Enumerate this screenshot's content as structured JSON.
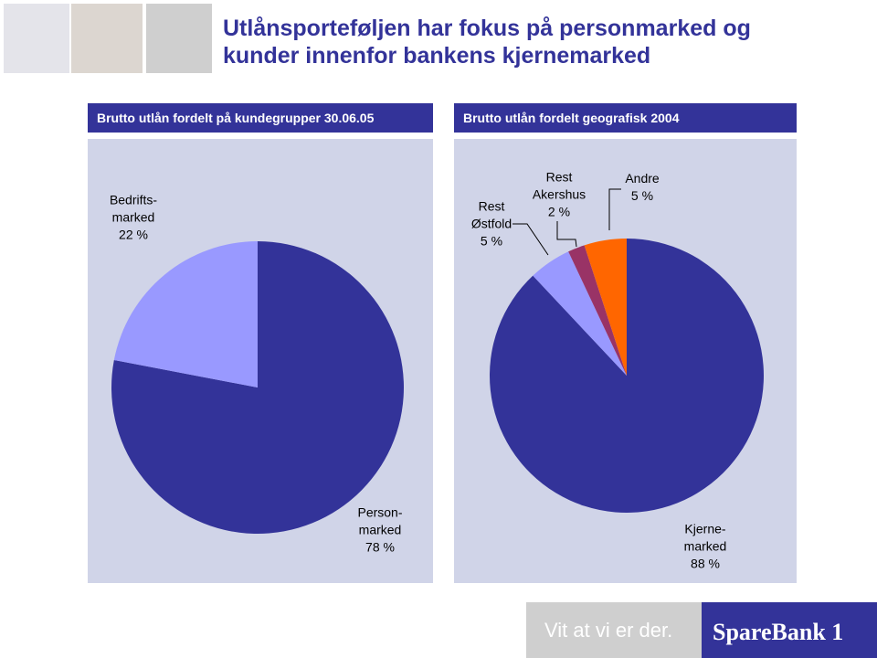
{
  "title": "Utlånsporteføljen har fokus på personmarked og kunder innenfor bankens kjernemarked",
  "chart_data": [
    {
      "type": "pie",
      "title": "Brutto utlån fordelt på kundegrupper 30.06.05",
      "categories": [
        "Person-\nmarked",
        "Bedrifts-\nmarked"
      ],
      "values": [
        78,
        22
      ],
      "value_labels": [
        "78 %",
        "22 %"
      ],
      "colors": [
        "#333399",
        "#9999ff"
      ]
    },
    {
      "type": "pie",
      "title": "Brutto utlån fordelt geografisk 2004",
      "categories": [
        "Kjerne-\nmarked",
        "Rest\nØstfold",
        "Rest\nAkershus",
        "Andre"
      ],
      "values": [
        88,
        5,
        2,
        5
      ],
      "value_labels": [
        "88 %",
        "5 %",
        "2 %",
        "5 %"
      ],
      "colors": [
        "#333399",
        "#9999ff",
        "#993366",
        "#ff6600"
      ]
    }
  ],
  "footer": {
    "slogan": "Vit at vi er der.",
    "brand": "SpareBank 1"
  }
}
